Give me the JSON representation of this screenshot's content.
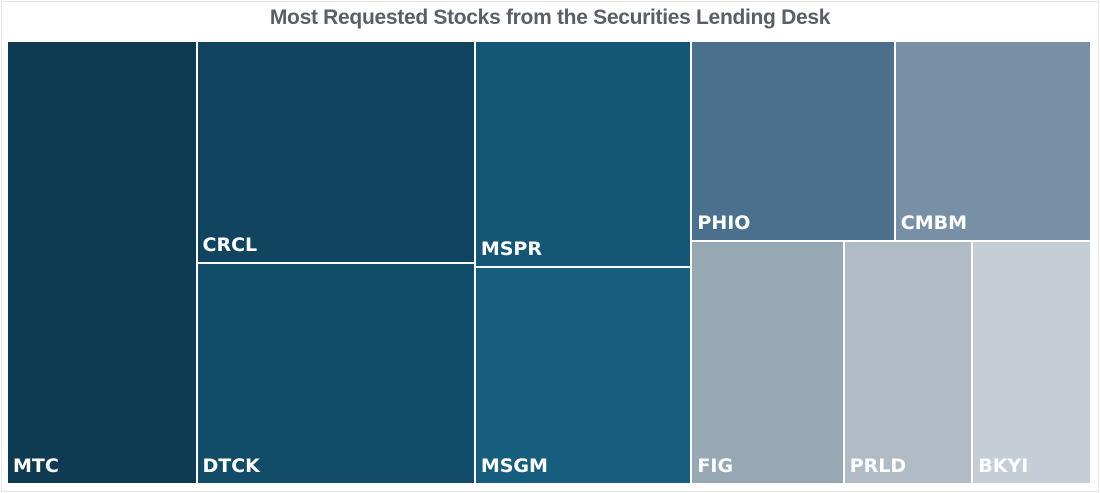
{
  "chart_data": {
    "type": "treemap",
    "title": "Most Requested Stocks from the Securities Lending Desk",
    "unit": "relative share (%) estimated from tile area",
    "items": [
      {
        "label": "MTC",
        "value": 17.5,
        "color": "#0e3b52"
      },
      {
        "label": "CRCL",
        "value": 12.9,
        "color": "#10445f"
      },
      {
        "label": "DTCK",
        "value": 12.8,
        "color": "#114d69"
      },
      {
        "label": "MSPR",
        "value": 10.2,
        "color": "#155575"
      },
      {
        "label": "MSGM",
        "value": 9.8,
        "color": "#175d7d"
      },
      {
        "label": "PHIO",
        "value": 8.5,
        "color": "#4a708d"
      },
      {
        "label": "CMBM",
        "value": 8.2,
        "color": "#7890a5"
      },
      {
        "label": "FIG",
        "value": 7.7,
        "color": "#97a8b5"
      },
      {
        "label": "PRLD",
        "value": 6.5,
        "color": "#b1bbc5"
      },
      {
        "label": "BKYI",
        "value": 6.0,
        "color": "#c5ced7"
      }
    ]
  }
}
